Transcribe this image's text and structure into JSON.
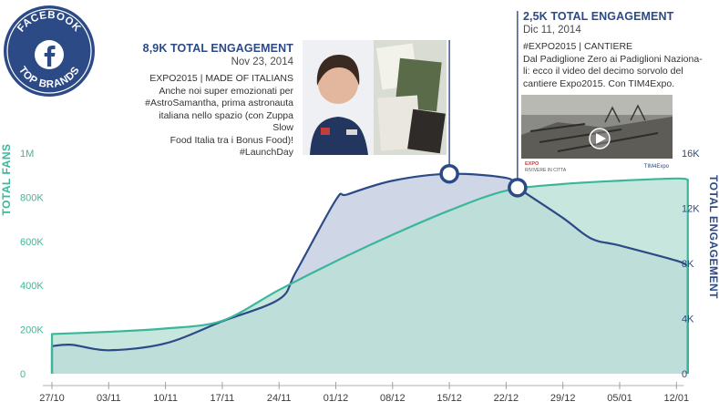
{
  "badge": {
    "top_text": "FACEBOOK",
    "bottom_text": "TOP BRANDS",
    "icon": "facebook-f-icon"
  },
  "callouts": [
    {
      "headline": "8,9K TOTAL ENGAGEMENT",
      "date": "Nov 23, 2014",
      "text_lines": [
        "EXPO2015 | MADE OF ITALIANS",
        "Anche noi super emozionati per",
        "#AstroSamantha, prima astronauta",
        "italiana nello spazio (con Zuppa Slow",
        "Food Italia tra i Bonus Food)!",
        "#LaunchDay"
      ],
      "photo": "astronaut-and-food-packets-photo"
    },
    {
      "headline": "2,5K TOTAL ENGAGEMENT",
      "date": "Dic 11, 2014",
      "text_lines": [
        "#EXPO2015 | CANTIERE",
        "Dal Padiglione Zero ai Padiglioni Naziona-",
        "li: ecco il video del decimo sorvolo del",
        "cantiere Expo2015. Con TIM4Expo."
      ],
      "photo": "construction-site-video-thumbnail",
      "photo_caption_left": "RIVIVERE IN CITTA",
      "photo_caption_right": "TIM4Expo"
    }
  ],
  "chart_data": {
    "type": "area",
    "x_labels": [
      "27/10",
      "03/11",
      "10/11",
      "17/11",
      "24/11",
      "01/12",
      "08/12",
      "15/12",
      "22/12",
      "29/12",
      "05/01",
      "12/01"
    ],
    "y_left": {
      "title": "TOTAL FANS",
      "ticks": [
        "0",
        "200K",
        "400K",
        "600K",
        "800K",
        "1M"
      ],
      "range": [
        0,
        1000000
      ]
    },
    "y_right": {
      "title": "TOTAL ENGAGEMENT",
      "ticks": [
        "0",
        "4K",
        "8K",
        "12K",
        "16K"
      ],
      "range": [
        0,
        16000
      ]
    },
    "series": [
      {
        "name": "TOTAL FANS",
        "axis": "left",
        "color": "#3ab79a",
        "fill": "#b7e0d5",
        "points": [
          [
            0,
            180000
          ],
          [
            1,
            190000
          ],
          [
            2,
            205000
          ],
          [
            3,
            240000
          ],
          [
            4,
            380000
          ],
          [
            5,
            510000
          ],
          [
            6,
            630000
          ],
          [
            7,
            740000
          ],
          [
            8,
            830000
          ],
          [
            9,
            860000
          ],
          [
            10,
            875000
          ],
          [
            11,
            885000
          ],
          [
            11.2,
            880000
          ]
        ]
      },
      {
        "name": "TOTAL ENGAGEMENT",
        "axis": "right",
        "color": "#2c4a86",
        "fill": "#c7d0e2",
        "points": [
          [
            0,
            2000
          ],
          [
            0.35,
            2100
          ],
          [
            1,
            1700
          ],
          [
            2,
            2200
          ],
          [
            3,
            3800
          ],
          [
            4,
            5400
          ],
          [
            4.3,
            7400
          ],
          [
            5,
            12600
          ],
          [
            5.2,
            13000
          ],
          [
            6,
            14000
          ],
          [
            7,
            14500
          ],
          [
            8,
            14200
          ],
          [
            8.2,
            13500
          ],
          [
            9,
            11300
          ],
          [
            9.5,
            9800
          ],
          [
            10,
            9300
          ],
          [
            11,
            8200
          ],
          [
            11.2,
            7800
          ]
        ]
      }
    ],
    "highlights": [
      {
        "series": "TOTAL ENGAGEMENT",
        "x": 7,
        "y": 14500
      },
      {
        "series": "TOTAL ENGAGEMENT",
        "x": 8.2,
        "y": 13500
      }
    ],
    "grid": false
  }
}
